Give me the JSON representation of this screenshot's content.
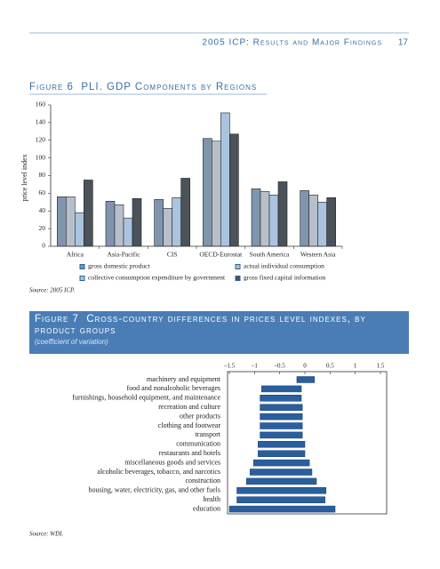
{
  "header": {
    "title": "2005 ICP: Results and Major Findings",
    "page_number": "17"
  },
  "chart_data": [
    {
      "type": "bar",
      "title": "Figure 6  PLI. GDP Components by Regions",
      "y_label": "price level index",
      "categories": [
        "Africa",
        "Asia-Pacific",
        "CIS",
        "OECD-Eurostat",
        "South America",
        "Western Asia"
      ],
      "series": [
        {
          "name": "gross domestic product",
          "color": "#7f95ad",
          "values": [
            56,
            51,
            53,
            122,
            65,
            63
          ]
        },
        {
          "name": "actual individual consumption",
          "color": "#b7c0ca",
          "values": [
            56,
            47,
            43,
            119,
            62,
            58
          ]
        },
        {
          "name": "collective consumption expenditure by government",
          "color": "#a9c4df",
          "values": [
            38,
            32,
            55,
            151,
            58,
            50
          ]
        },
        {
          "name": "gross fixed capital information",
          "color": "#4b5259",
          "values": [
            75,
            54,
            77,
            127,
            73,
            55
          ]
        }
      ],
      "ylim": [
        0,
        160
      ],
      "yticks": [
        0,
        20,
        40,
        60,
        80,
        100,
        120,
        140,
        160
      ],
      "source": "Source: 2005 ICP."
    },
    {
      "type": "range-bar",
      "orientation": "horizontal",
      "title": "Figure 7  Cross-country differences in prices level indexes, by product groups",
      "subtitle": "(coefficient of variation)",
      "categories": [
        "machinery and equipment",
        "food and nonalcoholic beverages",
        "furnishings, household equipment, and maintenance",
        "recreation and culture",
        "other products",
        "clothing and footwear",
        "transport",
        "communication",
        "restaurants and hotels",
        "miscellaneous goods and services",
        "alcoholic beverages, tobacco, and narcotics",
        "construction",
        "housing, water, electricity, gas, and other fuels",
        "health",
        "education"
      ],
      "values": [
        [
          -0.16,
          0.19
        ],
        [
          -0.86,
          -0.07
        ],
        [
          -0.89,
          -0.07
        ],
        [
          -0.89,
          -0.05
        ],
        [
          -0.89,
          -0.05
        ],
        [
          -0.89,
          -0.05
        ],
        [
          -0.89,
          -0.05
        ],
        [
          -0.93,
          0
        ],
        [
          -0.93,
          0
        ],
        [
          -1.02,
          0.09
        ],
        [
          -1.09,
          0.14
        ],
        [
          -1.16,
          0.23
        ],
        [
          -1.35,
          0.42
        ],
        [
          -1.35,
          0.4
        ],
        [
          -1.5,
          0.6
        ]
      ],
      "color": "#2a5f9e",
      "xlim": [
        -1.5,
        1.5
      ],
      "xticks": [
        {
          "value": -1.5,
          "label": "–1.5"
        },
        {
          "value": -1,
          "label": "–1"
        },
        {
          "value": -0.5,
          "label": "–0.5"
        },
        0,
        0.5,
        1,
        1.5
      ],
      "source": "Source: WDI."
    }
  ]
}
